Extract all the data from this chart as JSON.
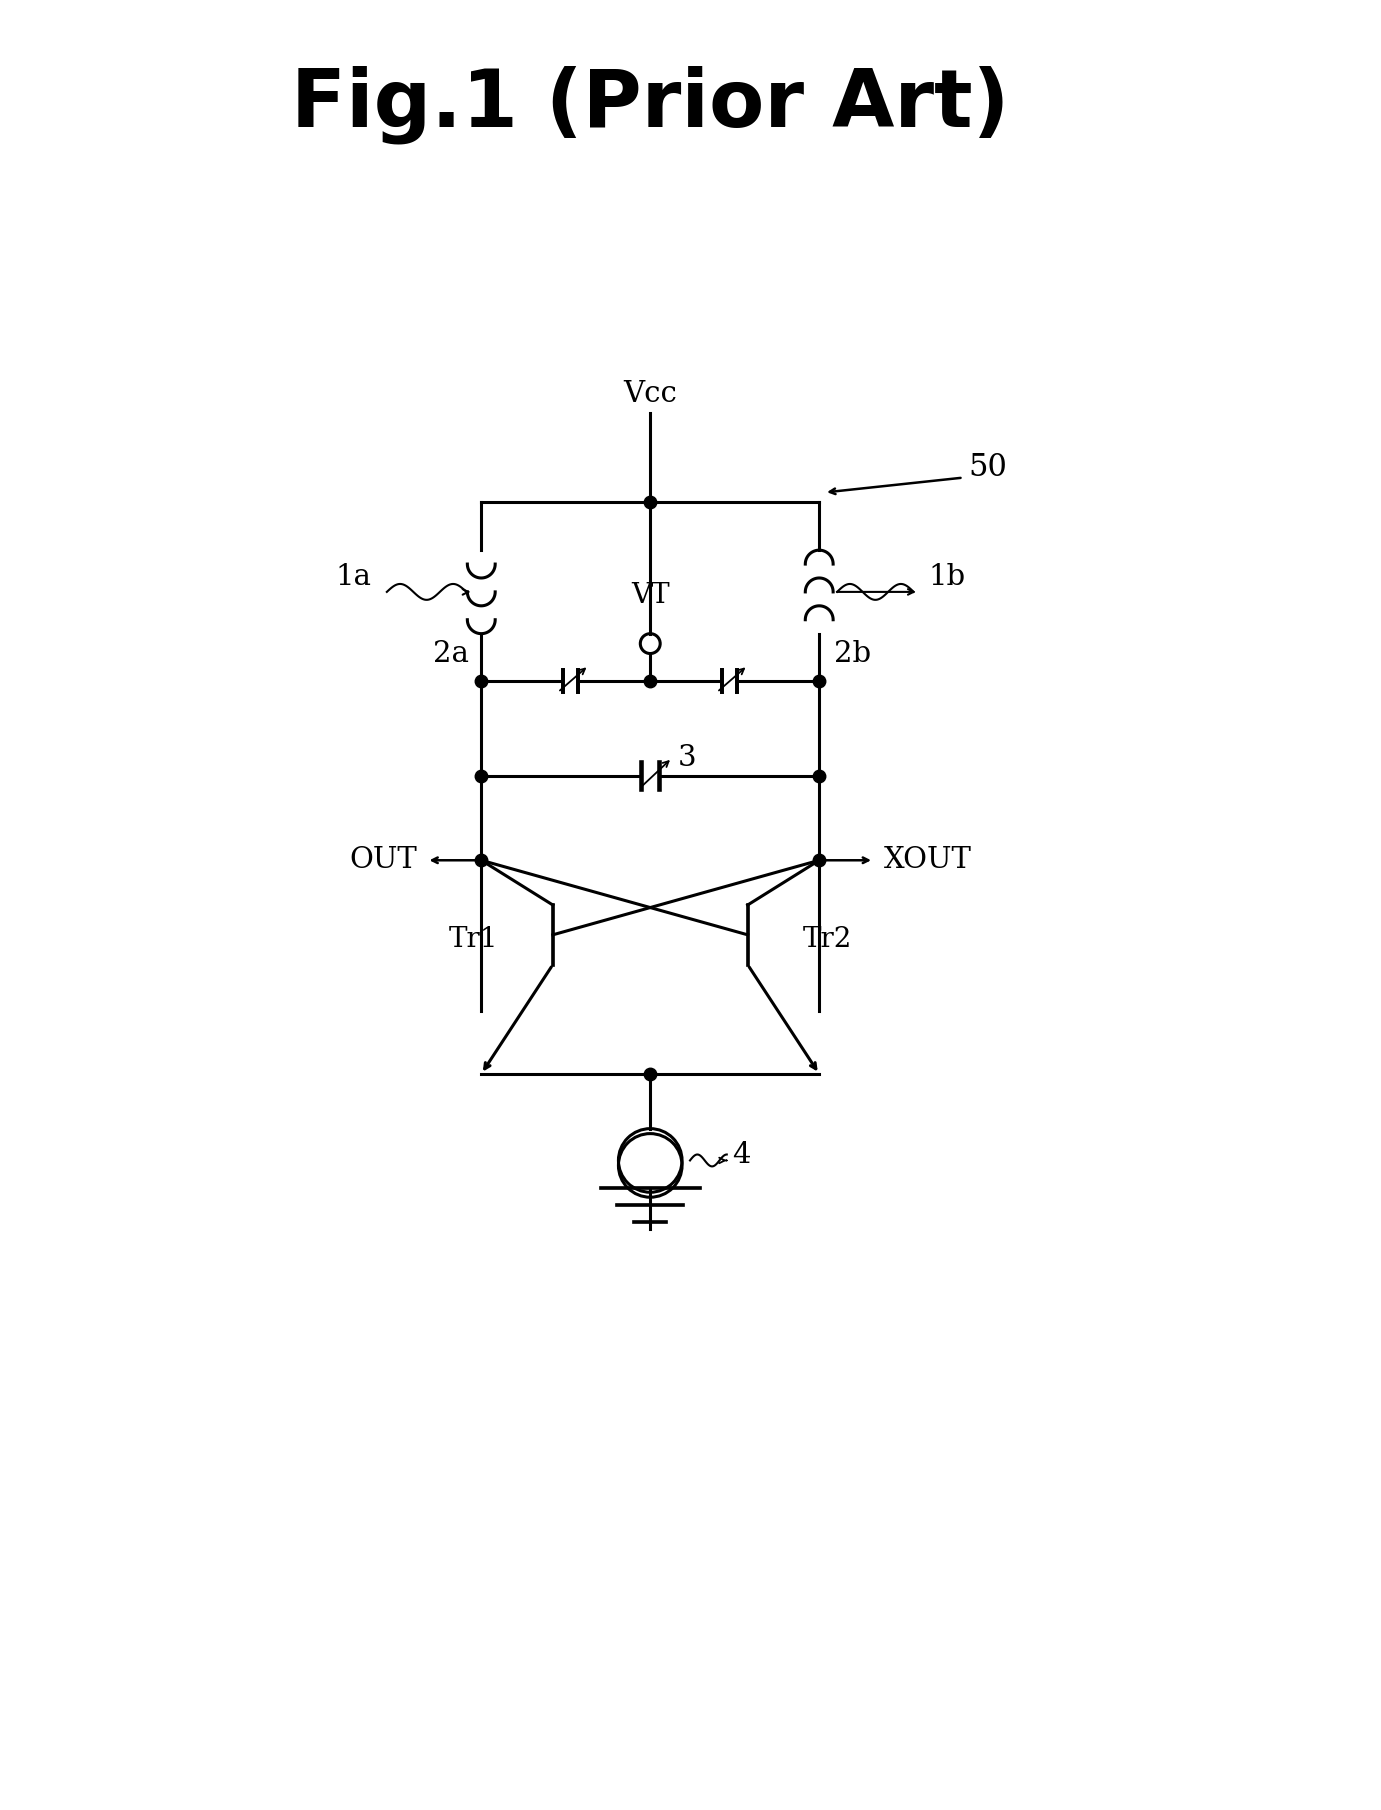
{
  "title": "Fig.1 (Prior Art)",
  "title_fontsize": 58,
  "bg_color": "#ffffff",
  "lw": 2.2,
  "label_50": "50",
  "label_vcc": "Vcc",
  "label_vt": "VT",
  "label_1a": "1a",
  "label_1b": "1b",
  "label_2a": "2a",
  "label_2b": "2b",
  "label_3": "3",
  "label_4": "4",
  "label_out": "OUT",
  "label_xout": "XOUT",
  "label_tr1": "Tr1",
  "label_tr2": "Tr2"
}
